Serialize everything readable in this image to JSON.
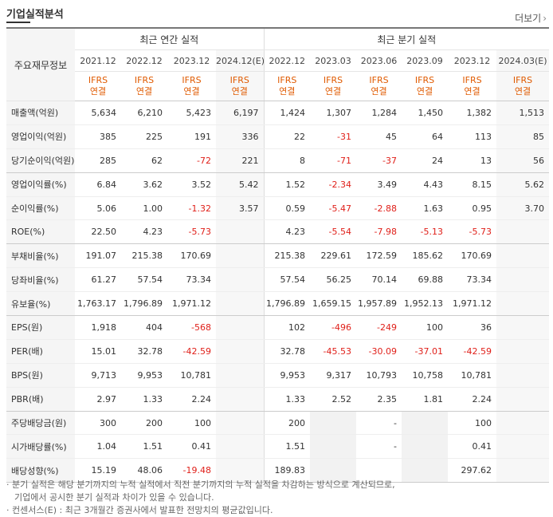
{
  "section_title": "기업실적분석",
  "more_label": "더보기",
  "row_header_label": "주요재무정보",
  "groups": [
    "최근 연간 실적",
    "최근 분기 실적"
  ],
  "periods": [
    "2021.12",
    "2022.12",
    "2023.12",
    "2024.12(E)",
    "2022.12",
    "2023.03",
    "2023.06",
    "2023.09",
    "2023.12",
    "2024.03(E)"
  ],
  "ifrs_label": "IFRS",
  "consolidated_label": "연결",
  "rows": [
    {
      "label": "매출액(억원)",
      "values": [
        "5,634",
        "6,210",
        "5,423",
        "6,197",
        "1,424",
        "1,307",
        "1,284",
        "1,450",
        "1,382",
        "1,513"
      ]
    },
    {
      "label": "영업이익(억원)",
      "values": [
        "385",
        "225",
        "191",
        "336",
        "22",
        "-31",
        "45",
        "64",
        "113",
        "85"
      ]
    },
    {
      "label": "당기순이익(억원)",
      "values": [
        "285",
        "62",
        "-72",
        "221",
        "8",
        "-71",
        "-37",
        "24",
        "13",
        "56"
      ]
    },
    {
      "label": "영업이익률(%)",
      "values": [
        "6.84",
        "3.62",
        "3.52",
        "5.42",
        "1.52",
        "-2.34",
        "3.49",
        "4.43",
        "8.15",
        "5.62"
      ]
    },
    {
      "label": "순이익률(%)",
      "values": [
        "5.06",
        "1.00",
        "-1.32",
        "3.57",
        "0.59",
        "-5.47",
        "-2.88",
        "1.63",
        "0.95",
        "3.70"
      ]
    },
    {
      "label": "ROE(%)",
      "values": [
        "22.50",
        "4.23",
        "-5.73",
        "",
        "4.23",
        "-5.54",
        "-7.98",
        "-5.13",
        "-5.73",
        ""
      ]
    },
    {
      "label": "부채비율(%)",
      "values": [
        "191.07",
        "215.38",
        "170.69",
        "",
        "215.38",
        "229.61",
        "172.59",
        "185.62",
        "170.69",
        ""
      ]
    },
    {
      "label": "당좌비율(%)",
      "values": [
        "61.27",
        "57.54",
        "73.34",
        "",
        "57.54",
        "56.25",
        "70.14",
        "69.88",
        "73.34",
        ""
      ]
    },
    {
      "label": "유보율(%)",
      "values": [
        "1,763.17",
        "1,796.89",
        "1,971.12",
        "",
        "1,796.89",
        "1,659.15",
        "1,957.89",
        "1,952.13",
        "1,971.12",
        ""
      ]
    },
    {
      "label": "EPS(원)",
      "values": [
        "1,918",
        "404",
        "-568",
        "",
        "102",
        "-496",
        "-249",
        "100",
        "36",
        ""
      ]
    },
    {
      "label": "PER(배)",
      "values": [
        "15.01",
        "32.78",
        "-42.59",
        "",
        "32.78",
        "-45.53",
        "-30.09",
        "-37.01",
        "-42.59",
        ""
      ]
    },
    {
      "label": "BPS(원)",
      "values": [
        "9,713",
        "9,953",
        "10,781",
        "",
        "9,953",
        "9,317",
        "10,793",
        "10,758",
        "10,781",
        ""
      ]
    },
    {
      "label": "PBR(배)",
      "values": [
        "2.97",
        "1.33",
        "2.24",
        "",
        "1.33",
        "2.52",
        "2.35",
        "1.81",
        "2.24",
        ""
      ]
    },
    {
      "label": "주당배당금(원)",
      "values": [
        "300",
        "200",
        "100",
        "",
        "200",
        "",
        "-",
        "",
        "100",
        ""
      ]
    },
    {
      "label": "시가배당률(%)",
      "values": [
        "1.04",
        "1.51",
        "0.41",
        "",
        "1.51",
        "",
        "-",
        "",
        "0.41",
        ""
      ]
    },
    {
      "label": "배당성향(%)",
      "values": [
        "15.19",
        "48.06",
        "-19.48",
        "",
        "189.83",
        "",
        "",
        "",
        "297.62",
        ""
      ]
    }
  ],
  "notes": [
    "· 분기 실적은 해당 분기까지의 누적 실적에서 직전 분기까지의 누적 실적을 차감하는 방식으로 계산되므로,",
    "기업에서 공시한 분기 실적과 차이가 있을 수 있습니다.",
    "· 컨센서스(E) : 최근 3개월간 증권사에서 발표한 전망치의 평균값입니다."
  ],
  "colors": {
    "negative": "#e0201a",
    "ifrs": "#e05a00",
    "label_bg": "#f5f5f5"
  }
}
